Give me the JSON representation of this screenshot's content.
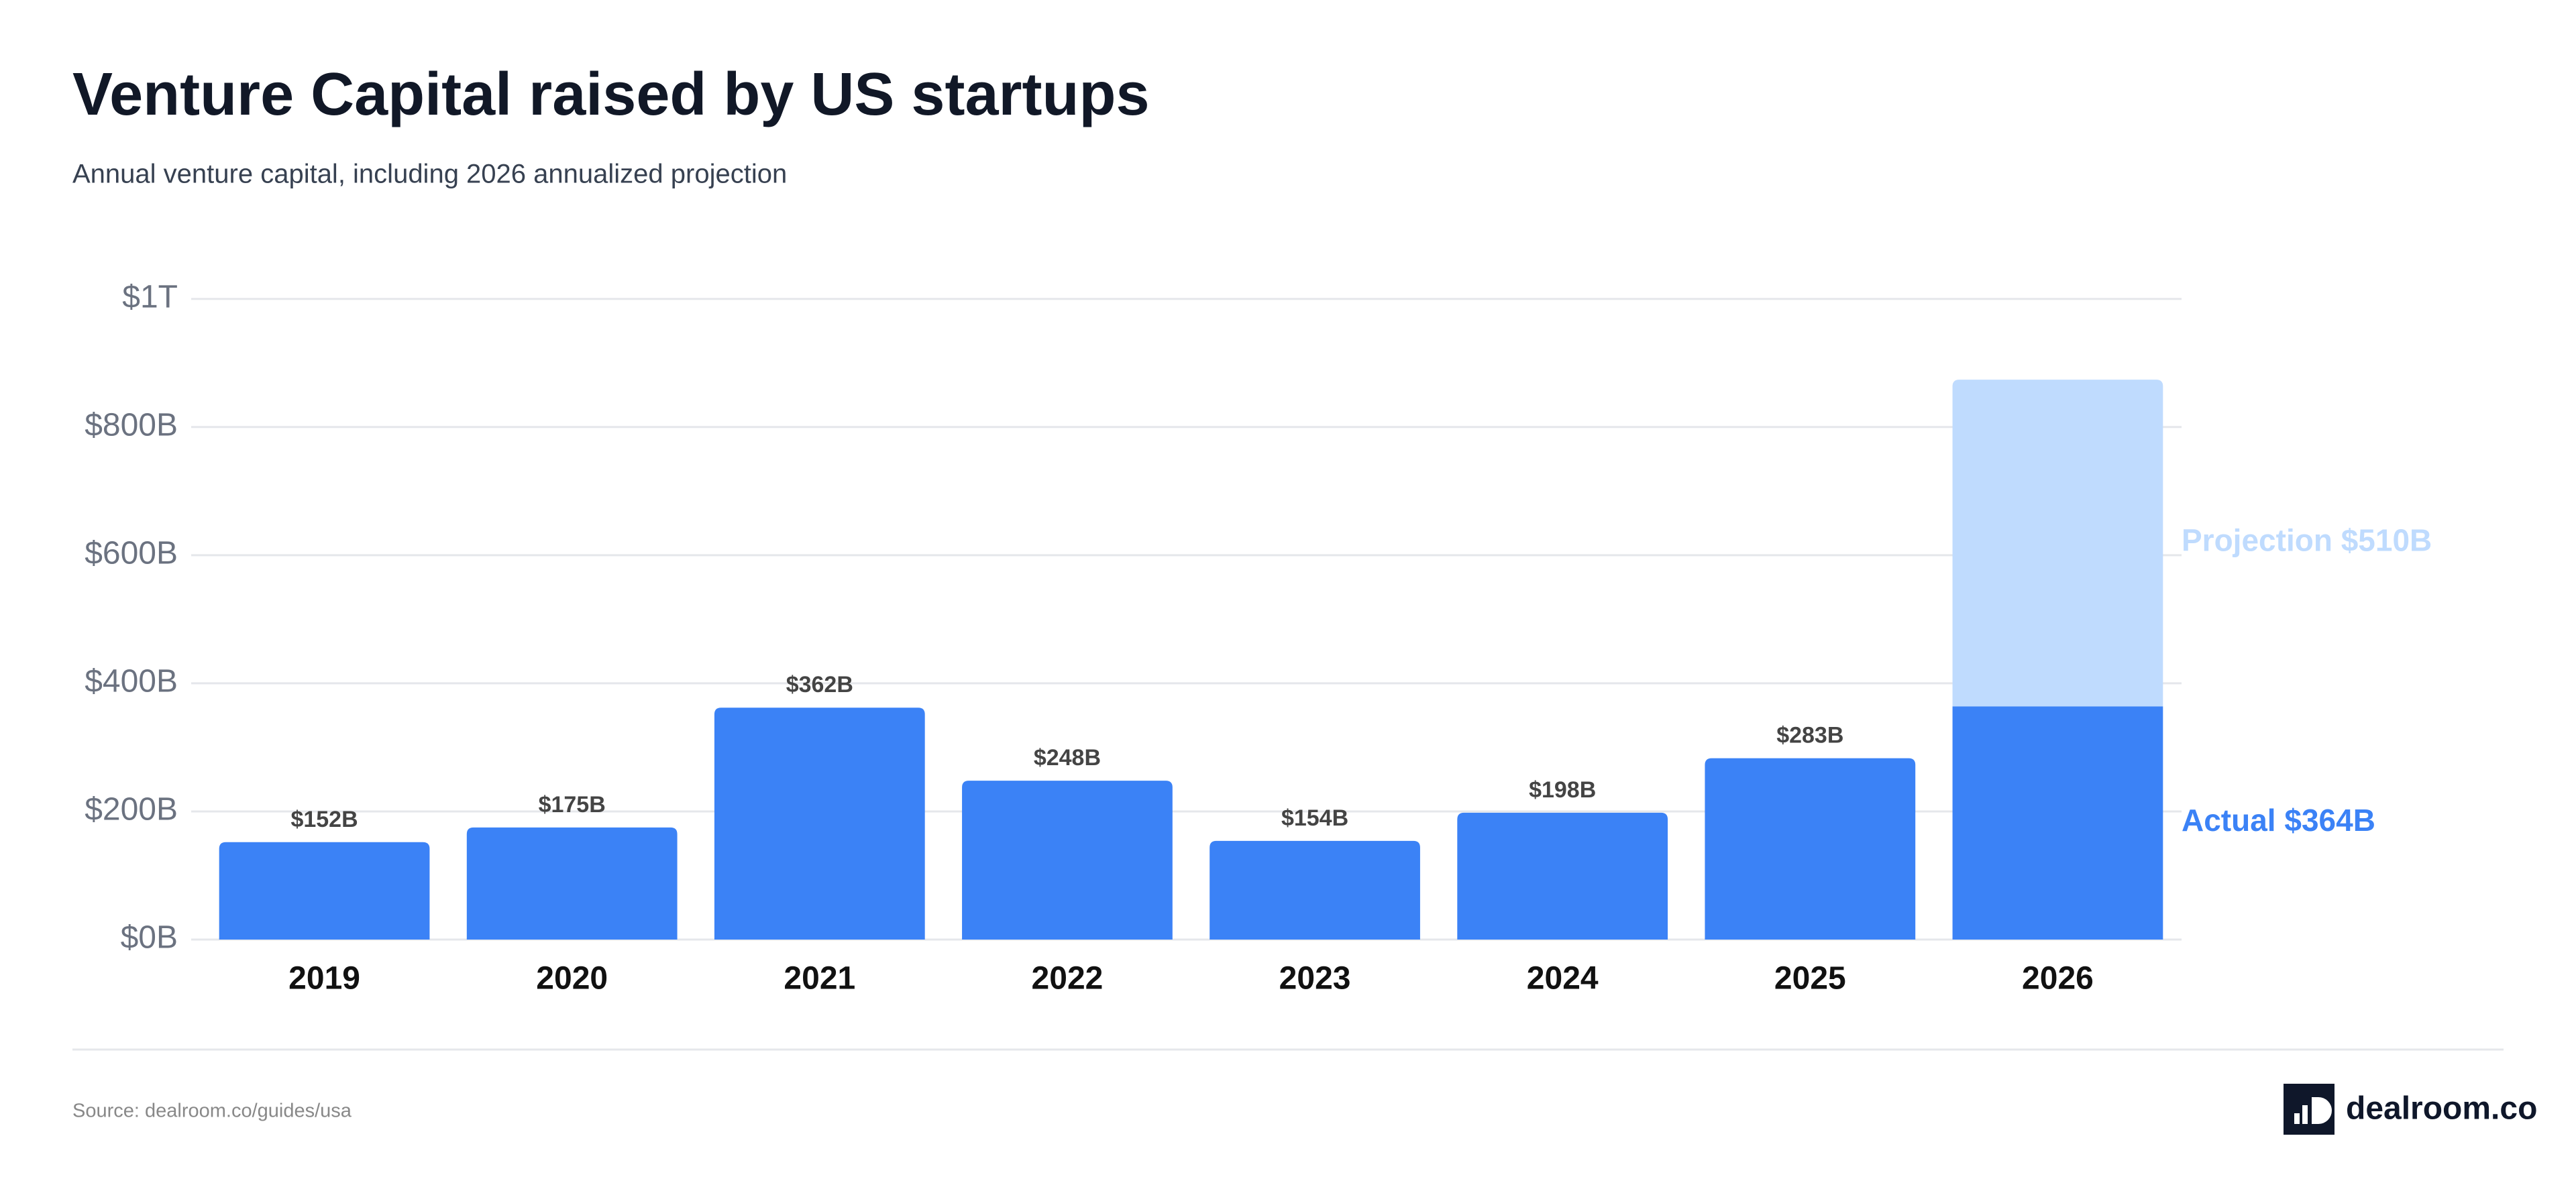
{
  "chart_data": {
    "type": "stacked_bar",
    "title": "Venture Capital raised by US startups",
    "subtitle": "Annual venture capital, including 2026 annualized projection",
    "categories": [
      "2019",
      "2020",
      "2021",
      "2022",
      "2023",
      "2024",
      "2025",
      "2026"
    ],
    "series": [
      {
        "name": "Actual",
        "color": "#3b82f6",
        "values": [
          152,
          175,
          362,
          248,
          154,
          198,
          283,
          364
        ],
        "value_labels": [
          "$152B",
          "$175B",
          "$362B",
          "$248B",
          "$154B",
          "$198B",
          "$283B",
          "$364B"
        ]
      },
      {
        "name": "Projection",
        "color": "#bfdbfe",
        "values": [
          null,
          null,
          null,
          null,
          null,
          null,
          null,
          510
        ],
        "value_labels": [
          null,
          null,
          null,
          null,
          null,
          null,
          null,
          "$510B"
        ]
      }
    ],
    "ylim": [
      0,
      1050
    ],
    "yticks": [
      {
        "value": 0,
        "label": "$0B"
      },
      {
        "value": 200,
        "label": "$200B"
      },
      {
        "value": 400,
        "label": "$400B"
      },
      {
        "value": 600,
        "label": "$600B"
      },
      {
        "value": 800,
        "label": "$800B"
      },
      {
        "value": 1000,
        "label": "$1T"
      }
    ],
    "grid": true,
    "source": "Source: dealroom.co/guides/usa",
    "logo": "dealroom.co"
  }
}
